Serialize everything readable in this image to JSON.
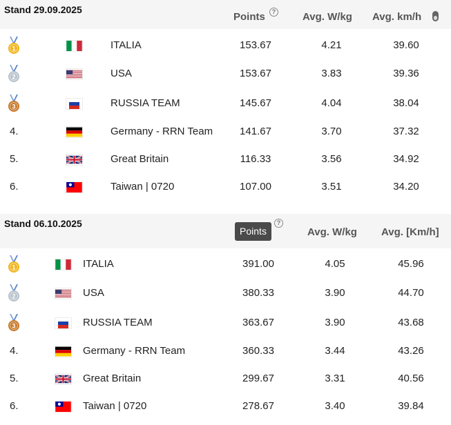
{
  "tables": [
    {
      "title": "Stand 29.09.2025",
      "col_points": "Points",
      "col_wkg": "Avg. W/kg",
      "col_kmh": "Avg. km/h",
      "rows": [
        {
          "rank": "",
          "medal": "gold",
          "medal_num": "1",
          "flag": "italy",
          "team": "ITALIA",
          "points": "153.67",
          "wkg": "4.21",
          "kmh": "39.60"
        },
        {
          "rank": "",
          "medal": "silver",
          "medal_num": "2",
          "flag": "usa",
          "team": "USA",
          "points": "153.67",
          "wkg": "3.83",
          "kmh": "39.36"
        },
        {
          "rank": "",
          "medal": "bronze",
          "medal_num": "3",
          "flag": "russia",
          "team": "RUSSIA TEAM",
          "points": "145.67",
          "wkg": "4.04",
          "kmh": "38.04"
        },
        {
          "rank": "4.",
          "medal": "",
          "medal_num": "",
          "flag": "germany",
          "team": "Germany - RRN Team",
          "points": "141.67",
          "wkg": "3.70",
          "kmh": "37.32"
        },
        {
          "rank": "5.",
          "medal": "",
          "medal_num": "",
          "flag": "uk",
          "team": "Great Britain",
          "points": "116.33",
          "wkg": "3.56",
          "kmh": "34.92"
        },
        {
          "rank": "6.",
          "medal": "",
          "medal_num": "",
          "flag": "taiwan",
          "team": "Taiwan | 0720",
          "points": "107.00",
          "wkg": "3.51",
          "kmh": "34.20"
        }
      ]
    },
    {
      "title": "Stand 06.10.2025",
      "col_points": "Points",
      "col_wkg": "Avg. W/kg",
      "col_kmh": "Avg. [Km/h]",
      "tooltip": "Points",
      "rows": [
        {
          "rank": "",
          "medal": "gold",
          "medal_num": "1",
          "flag": "italy",
          "team": "ITALIA",
          "points": "391.00",
          "wkg": "4.05",
          "kmh": "45.96"
        },
        {
          "rank": "",
          "medal": "silver",
          "medal_num": "2",
          "flag": "usa",
          "team": "USA",
          "points": "380.33",
          "wkg": "3.90",
          "kmh": "44.70"
        },
        {
          "rank": "",
          "medal": "bronze",
          "medal_num": "3",
          "flag": "russia",
          "team": "RUSSIA TEAM",
          "points": "363.67",
          "wkg": "3.90",
          "kmh": "43.68"
        },
        {
          "rank": "4.",
          "medal": "",
          "medal_num": "",
          "flag": "germany",
          "team": "Germany - RRN Team",
          "points": "360.33",
          "wkg": "3.44",
          "kmh": "43.26"
        },
        {
          "rank": "5.",
          "medal": "",
          "medal_num": "",
          "flag": "uk",
          "team": "Great Britain",
          "points": "299.67",
          "wkg": "3.31",
          "kmh": "40.56"
        },
        {
          "rank": "6.",
          "medal": "",
          "medal_num": "",
          "flag": "taiwan",
          "team": "Taiwan | 0720",
          "points": "278.67",
          "wkg": "3.40",
          "kmh": "39.84"
        }
      ]
    }
  ],
  "help_icon": "?",
  "colors": {
    "gold": "#f2b51c",
    "silver": "#b9c3cc",
    "bronze": "#c8792a",
    "header_bg": "#f5f5f5"
  }
}
